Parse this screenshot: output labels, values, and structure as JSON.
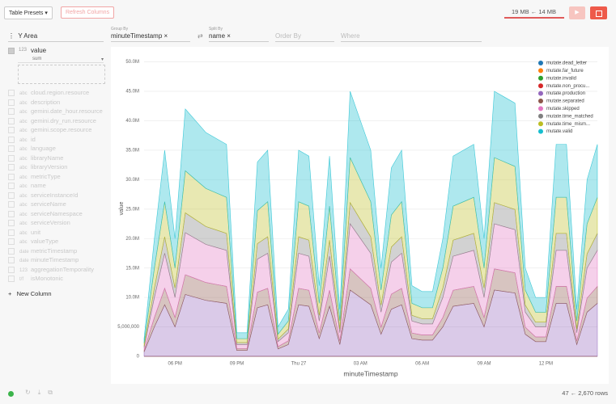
{
  "toolbar": {
    "presets": "Table Presets",
    "refresh": "Refresh Columns",
    "memory": "19 MB ← 14 MB"
  },
  "config": {
    "plugin": "Y Area",
    "group_by_label": "Group By",
    "group_by": "minuteTimestamp",
    "split_by_label": "Split By",
    "split_by": "name",
    "order_by": "Order By",
    "where": "Where"
  },
  "sidebar": {
    "active": {
      "type": "123",
      "name": "value",
      "aggregate": "sum"
    },
    "columns": [
      {
        "type": "abc",
        "name": "cloud.region.resource"
      },
      {
        "type": "abc",
        "name": "description"
      },
      {
        "type": "abc",
        "name": "gemini.date_hour.resource"
      },
      {
        "type": "abc",
        "name": "gemini.dry_run.resource"
      },
      {
        "type": "abc",
        "name": "gemini.scope.resource"
      },
      {
        "type": "abc",
        "name": "id"
      },
      {
        "type": "abc",
        "name": "language"
      },
      {
        "type": "abc",
        "name": "libraryName"
      },
      {
        "type": "abc",
        "name": "libraryVersion"
      },
      {
        "type": "abc",
        "name": "metricType"
      },
      {
        "type": "abc",
        "name": "name"
      },
      {
        "type": "abc",
        "name": "serviceInstanceId"
      },
      {
        "type": "abc",
        "name": "serviceName"
      },
      {
        "type": "abc",
        "name": "serviceNamespace"
      },
      {
        "type": "abc",
        "name": "serviceVersion"
      },
      {
        "type": "abc",
        "name": "unit"
      },
      {
        "type": "abc",
        "name": "valueType"
      },
      {
        "type": "date",
        "name": "metricTimestamp"
      },
      {
        "type": "date",
        "name": "minuteTimestamp"
      },
      {
        "type": "123",
        "name": "aggregationTemporality"
      },
      {
        "type": "t/f",
        "name": "isMonotonic"
      }
    ],
    "new_column": "New Column"
  },
  "footer": {
    "rows": "47 ← 2,670 rows"
  },
  "chart_data": {
    "type": "stacked-area",
    "x_label": "minuteTimestamp",
    "y_label": "value",
    "categories": [
      null,
      null,
      null,
      "06 PM",
      null,
      null,
      null,
      null,
      null,
      "09 PM",
      null,
      null,
      null,
      null,
      null,
      "Thu 27",
      null,
      null,
      null,
      null,
      null,
      "03 AM",
      null,
      null,
      null,
      null,
      null,
      "06 AM",
      null,
      null,
      null,
      null,
      null,
      "09 AM",
      null,
      null,
      null,
      null,
      null,
      "12 PM",
      null,
      null,
      null,
      null,
      null
    ],
    "ylim": [
      0,
      52000000
    ],
    "yticks": [
      0,
      {
        "value": 5000000,
        "label": "5,000,000"
      },
      {
        "value": 10000000,
        "label": "10.0M"
      },
      {
        "value": 15000000,
        "label": "15.0M"
      },
      {
        "value": 20000000,
        "label": "20.0M"
      },
      {
        "value": 25000000,
        "label": "25.0M"
      },
      {
        "value": 30000000,
        "label": "30.0M"
      },
      {
        "value": 35000000,
        "label": "35.0M"
      },
      {
        "value": 40000000,
        "label": "40.0M"
      },
      {
        "value": 45000000,
        "label": "45.0M"
      },
      {
        "value": 50000000,
        "label": "50.0M"
      }
    ],
    "grid": true,
    "legend": "top-right",
    "series": [
      {
        "name": "mutate.dead_letter",
        "color": "#1f77b4",
        "values": [
          0,
          0,
          0,
          0,
          0,
          0,
          0,
          0,
          0,
          0,
          0,
          0,
          0,
          0,
          0,
          0,
          0,
          0,
          0,
          0,
          0,
          0,
          0,
          0,
          0,
          0,
          0,
          0,
          0,
          0,
          0,
          0,
          0,
          0,
          0,
          0,
          0,
          0,
          0,
          0,
          0,
          0,
          0,
          0,
          0
        ]
      },
      {
        "name": "mutate.far_future",
        "color": "#ff7f0e",
        "values": [
          0,
          0,
          0,
          0,
          0,
          0,
          0,
          0,
          0,
          0,
          0,
          0,
          0,
          0,
          0,
          0,
          0,
          0,
          0,
          0,
          0,
          0,
          0,
          0,
          0,
          0,
          0,
          0,
          0,
          0,
          0,
          0,
          0,
          0,
          0,
          0,
          0,
          0,
          0,
          0,
          0,
          0,
          0,
          0,
          0
        ]
      },
      {
        "name": "mutate.invalid",
        "color": "#2ca02c",
        "values": [
          0,
          0,
          0,
          0,
          0,
          0,
          0,
          0,
          0,
          0,
          0,
          0,
          0,
          0,
          0,
          0,
          0,
          0,
          0,
          0,
          0,
          0,
          0,
          0,
          0,
          0,
          0,
          0,
          0,
          0,
          0,
          0,
          0,
          0,
          0,
          0,
          0,
          0,
          0,
          0,
          0,
          0,
          0,
          0,
          0
        ]
      },
      {
        "name": "mutate.non_procu...",
        "color": "#d62728",
        "values": [
          0,
          0,
          0,
          0,
          0,
          0,
          0,
          0,
          0,
          0,
          0,
          0,
          0,
          0,
          0,
          0,
          0,
          0,
          0,
          0,
          0,
          0,
          0,
          0,
          0,
          0,
          0,
          0,
          0,
          0,
          0,
          0,
          0,
          0,
          0,
          0,
          0,
          0,
          0,
          0,
          0,
          0,
          0,
          0,
          0
        ]
      },
      {
        "name": "mutate.production",
        "color": "#9467bd",
        "values": [
          750000,
          5000000,
          8750000,
          5000000,
          10500000,
          10000000,
          9500000,
          9250000,
          9000000,
          1000000,
          1000000,
          8250000,
          8750000,
          1250000,
          2000000,
          8750000,
          8500000,
          3000000,
          8500000,
          2000000,
          11250000,
          10000000,
          8750000,
          3750000,
          8000000,
          8750000,
          3000000,
          2750000,
          2750000,
          5000000,
          8500000,
          8750000,
          9000000,
          5000000,
          11250000,
          11000000,
          10750000,
          3750000,
          2500000,
          2500000,
          9000000,
          9000000,
          2000000,
          7500000,
          9000000
        ]
      },
      {
        "name": "mutate.separated",
        "color": "#8c564b",
        "values": [
          240000,
          1600000,
          2800000,
          1600000,
          3360000,
          3200000,
          3040000,
          2960000,
          2880000,
          320000,
          320000,
          2640000,
          2800000,
          400000,
          640000,
          2800000,
          2720000,
          960000,
          2720000,
          640000,
          3600000,
          3200000,
          2800000,
          1200000,
          2560000,
          2800000,
          960000,
          880000,
          880000,
          1600000,
          2720000,
          2800000,
          2880000,
          1600000,
          3600000,
          3520000,
          3440000,
          1200000,
          800000,
          800000,
          2880000,
          2880000,
          640000,
          2400000,
          2880000
        ]
      },
      {
        "name": "mutate.skipped",
        "color": "#e377c2",
        "values": [
          510000,
          3400000,
          5950000,
          3400000,
          7140000,
          6800000,
          6460000,
          6290000,
          6120000,
          680000,
          680000,
          5610000,
          5950000,
          850000,
          1360000,
          5950000,
          5780000,
          2040000,
          5780000,
          1360000,
          7650000,
          6800000,
          5950000,
          2550000,
          5440000,
          5950000,
          2040000,
          1870000,
          1870000,
          3400000,
          5780000,
          5950000,
          6120000,
          3400000,
          7650000,
          7480000,
          7310000,
          2550000,
          1700000,
          1700000,
          6120000,
          6120000,
          1360000,
          5100000,
          6120000
        ]
      },
      {
        "name": "mutate.time_matched",
        "color": "#7f7f7f",
        "values": [
          240000,
          1600000,
          2800000,
          1600000,
          3360000,
          3200000,
          3040000,
          2960000,
          2880000,
          320000,
          320000,
          2640000,
          2800000,
          400000,
          640000,
          2800000,
          2720000,
          960000,
          2720000,
          640000,
          3600000,
          3200000,
          2800000,
          1200000,
          2560000,
          2800000,
          960000,
          880000,
          880000,
          1600000,
          2720000,
          2800000,
          2880000,
          1600000,
          3600000,
          3520000,
          3440000,
          1200000,
          800000,
          800000,
          2880000,
          2880000,
          640000,
          2400000,
          2880000
        ]
      },
      {
        "name": "mutate.time_mism...",
        "color": "#bcbd22",
        "values": [
          510000,
          3400000,
          5950000,
          3400000,
          7140000,
          6800000,
          6460000,
          6290000,
          6120000,
          680000,
          680000,
          5610000,
          5950000,
          850000,
          1360000,
          5950000,
          5780000,
          2040000,
          5780000,
          1360000,
          7650000,
          6800000,
          5950000,
          2550000,
          5440000,
          5950000,
          2040000,
          1870000,
          1870000,
          3400000,
          5780000,
          5950000,
          6120000,
          3400000,
          7650000,
          7480000,
          7310000,
          2550000,
          1700000,
          1700000,
          6120000,
          6120000,
          1360000,
          5100000,
          6120000
        ]
      },
      {
        "name": "mutate.valid",
        "color": "#17becf",
        "values": [
          750000,
          5000000,
          8750000,
          5000000,
          10500000,
          10000000,
          9500000,
          9250000,
          9000000,
          1000000,
          1000000,
          8250000,
          8750000,
          1250000,
          2000000,
          8750000,
          8500000,
          3000000,
          8500000,
          2000000,
          11250000,
          10000000,
          8750000,
          3750000,
          8000000,
          8750000,
          3000000,
          2750000,
          2750000,
          5000000,
          8500000,
          8750000,
          9000000,
          5000000,
          11250000,
          11000000,
          10750000,
          3750000,
          2500000,
          2500000,
          9000000,
          9000000,
          2000000,
          7500000,
          9000000
        ]
      }
    ]
  }
}
